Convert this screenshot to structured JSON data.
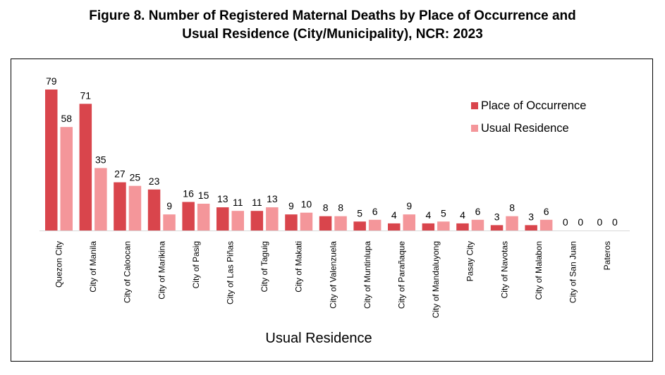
{
  "title_line1": "Figure 8. Number of Registered Maternal Deaths by Place of Occurrence and",
  "title_line2": "Usual Residence (City/Municipality), NCR: 2023",
  "colors": {
    "occurrence": "#d9454c",
    "residence": "#f4969a"
  },
  "chart_data": {
    "type": "bar",
    "xlabel": "Usual Residence",
    "ylabel": "",
    "ylim": [
      0,
      79
    ],
    "grid": false,
    "legend_position": "right",
    "categories": [
      "Quezon City",
      "City of Manila",
      "City of Caloocan",
      "City of Marikina",
      "City of Pasig",
      "City of Las Piñas",
      "City of Taguig",
      "City of Makati",
      "City of Valenzuela",
      "City of Muntinlupa",
      "City of Parañaque",
      "City of Mandaluyong",
      "Pasay City",
      "City of Navotas",
      "City of Malabon",
      "City of San Juan",
      "Pateros"
    ],
    "series": [
      {
        "name": "Place of Occurrence",
        "values": [
          79,
          71,
          27,
          23,
          16,
          13,
          11,
          9,
          8,
          5,
          4,
          4,
          4,
          3,
          3,
          0,
          0
        ]
      },
      {
        "name": "Usual Residence",
        "values": [
          58,
          35,
          25,
          9,
          15,
          11,
          13,
          10,
          8,
          6,
          9,
          5,
          6,
          8,
          6,
          0,
          0
        ]
      }
    ]
  }
}
